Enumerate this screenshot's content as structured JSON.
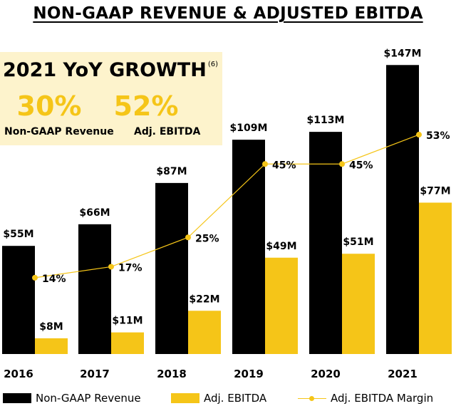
{
  "title": "NON-GAAP REVENUE & ADJUSTED EBITDA",
  "growth": {
    "heading": "2021 YoY GROWTH",
    "footnote": "(6)",
    "items": [
      {
        "value": "30%",
        "label": "Non-GAAP Revenue"
      },
      {
        "value": "52%",
        "label": "Adj. EBITDA"
      }
    ]
  },
  "colors": {
    "revenue": "#000000",
    "ebitda": "#f5c518",
    "margin_line": "#f5c518",
    "growth_bg": "#fdf3cc"
  },
  "legend": [
    {
      "name": "Non-GAAP Revenue",
      "icon": "black-square-swatch"
    },
    {
      "name": "Adj. EBITDA",
      "icon": "yellow-square-swatch"
    },
    {
      "name": "Adj. EBITDA Margin",
      "icon": "line-with-dot"
    }
  ],
  "chart_data": {
    "type": "bar",
    "categories": [
      "2016",
      "2017",
      "2018",
      "2019",
      "2020",
      "2021"
    ],
    "series": [
      {
        "name": "Non-GAAP Revenue",
        "values": [
          55,
          66,
          87,
          109,
          113,
          147
        ],
        "labels": [
          "$55M",
          "$66M",
          "$87M",
          "$109M",
          "$113M",
          "$147M"
        ]
      },
      {
        "name": "Adj. EBITDA",
        "values": [
          8,
          11,
          22,
          49,
          51,
          77
        ],
        "labels": [
          "$8M",
          "$11M",
          "$22M",
          "$49M",
          "$51M",
          "$77M"
        ]
      },
      {
        "name": "Adj. EBITDA Margin",
        "type": "line",
        "values": [
          14,
          17,
          25,
          45,
          45,
          53
        ],
        "labels": [
          "14%",
          "17%",
          "25%",
          "45%",
          "45%",
          "53%"
        ]
      }
    ],
    "ylim": [
      0,
      150
    ],
    "grid": false,
    "legend_position": "bottom"
  }
}
